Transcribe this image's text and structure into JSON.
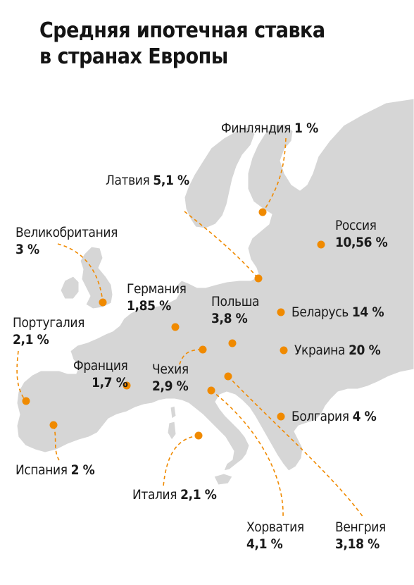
{
  "title": {
    "line1": "Средняя ипотечная ставка",
    "line2": "в странах Европы"
  },
  "colors": {
    "land": "#d6d6d6",
    "accent": "#f08a00",
    "text": "#1a1a1a"
  },
  "countries": [
    {
      "key": "finland",
      "name": "Финляндия",
      "rate": "1 %",
      "rate_pct": 1
    },
    {
      "key": "latvia",
      "name": "Латвия",
      "rate": "5,1 %",
      "rate_pct": 5.1
    },
    {
      "key": "uk",
      "name": "Великобритания",
      "rate": "3 %",
      "rate_pct": 3
    },
    {
      "key": "russia",
      "name": "Россия",
      "rate": "10,56 %",
      "rate_pct": 10.56
    },
    {
      "key": "germany",
      "name": "Германия",
      "rate": "1,85 %",
      "rate_pct": 1.85
    },
    {
      "key": "poland",
      "name": "Польша",
      "rate": "3,8 %",
      "rate_pct": 3.8
    },
    {
      "key": "belarus",
      "name": "Беларусь",
      "rate": "14 %",
      "rate_pct": 14
    },
    {
      "key": "portugal",
      "name": "Португалия",
      "rate": "2,1 %",
      "rate_pct": 2.1
    },
    {
      "key": "ukraine",
      "name": "Украина",
      "rate": "20 %",
      "rate_pct": 20
    },
    {
      "key": "france",
      "name": "Франция",
      "rate": "1,7 %",
      "rate_pct": 1.7
    },
    {
      "key": "czech",
      "name": "Чехия",
      "rate": "2,9 %",
      "rate_pct": 2.9
    },
    {
      "key": "bulgaria",
      "name": "Болгария",
      "rate": "4 %",
      "rate_pct": 4
    },
    {
      "key": "spain",
      "name": "Испания",
      "rate": "2 %",
      "rate_pct": 2
    },
    {
      "key": "italy",
      "name": "Италия",
      "rate": "2,1 %",
      "rate_pct": 2.1
    },
    {
      "key": "croatia",
      "name": "Хорватия",
      "rate": "4,1 %",
      "rate_pct": 4.1
    },
    {
      "key": "hungary",
      "name": "Венгрия",
      "rate": "3,18 %",
      "rate_pct": 3.18
    }
  ]
}
